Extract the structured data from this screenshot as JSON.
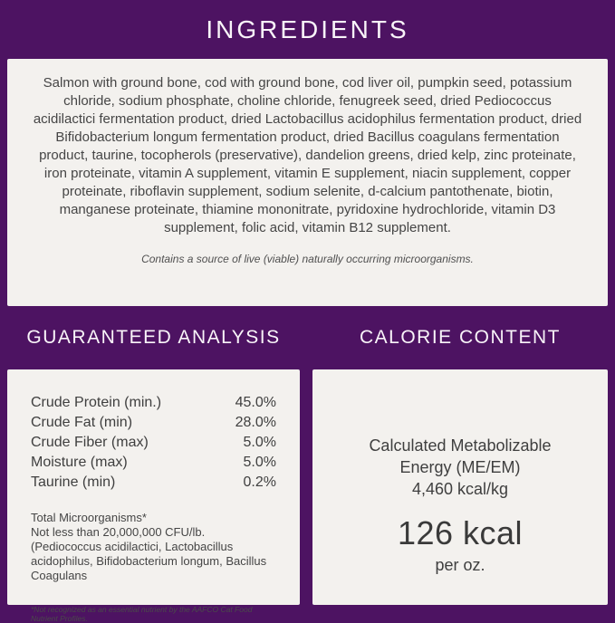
{
  "colors": {
    "purple": "#4d1362",
    "card": "#f3f1ee",
    "text": "#3f3f3f"
  },
  "ingredients": {
    "title": "INGREDIENTS",
    "body": "Salmon with ground bone, cod with ground bone, cod liver oil, pumpkin seed, potassium chloride, sodium phosphate, choline chloride, fenugreek seed, dried Pediococcus acidilactici fermentation product, dried Lactobacillus acidophilus fermentation product, dried Bifidobacterium longum fermentation product, dried Bacillus coagulans fermentation product, taurine, tocopherols (preservative), dandelion greens, dried kelp, zinc proteinate, iron proteinate, vitamin A supplement, vitamin E supplement, niacin supplement, copper proteinate, riboflavin supplement, sodium selenite, d-calcium pantothenate, biotin, manganese proteinate, thiamine mononitrate, pyridoxine hydrochloride, vitamin D3 supplement, folic acid, vitamin B12 supplement.",
    "note": "Contains a source of live (viable) naturally occurring microorganisms."
  },
  "guaranteed_analysis": {
    "title": "GUARANTEED ANALYSIS",
    "rows": [
      {
        "label": "Crude Protein (min.)",
        "value": "45.0%"
      },
      {
        "label": "Crude Fat (min)",
        "value": "28.0%"
      },
      {
        "label": "Crude Fiber (max)",
        "value": "5.0%"
      },
      {
        "label": "Moisture (max)",
        "value": "5.0%"
      },
      {
        "label": "Taurine (min)",
        "value": "0.2%"
      }
    ],
    "microorganisms_title": "Total Microorganisms*",
    "microorganisms_body": "Not less than 20,000,000 CFU/lb. (Pediococcus acidilactici, Lactobacillus acidophilus, Bifidobacterium longum, Bacillus Coagulans",
    "footnote": "*Not recognized as an essential nutrient by the AAFCO Cat Food Nutrient Profiles."
  },
  "calorie_content": {
    "title": "CALORIE CONTENT",
    "me_label": "Calculated Metabolizable Energy (ME/EM)",
    "me_value": "4,460 kcal/kg",
    "big_value": "126 kcal",
    "big_unit": "per oz."
  }
}
